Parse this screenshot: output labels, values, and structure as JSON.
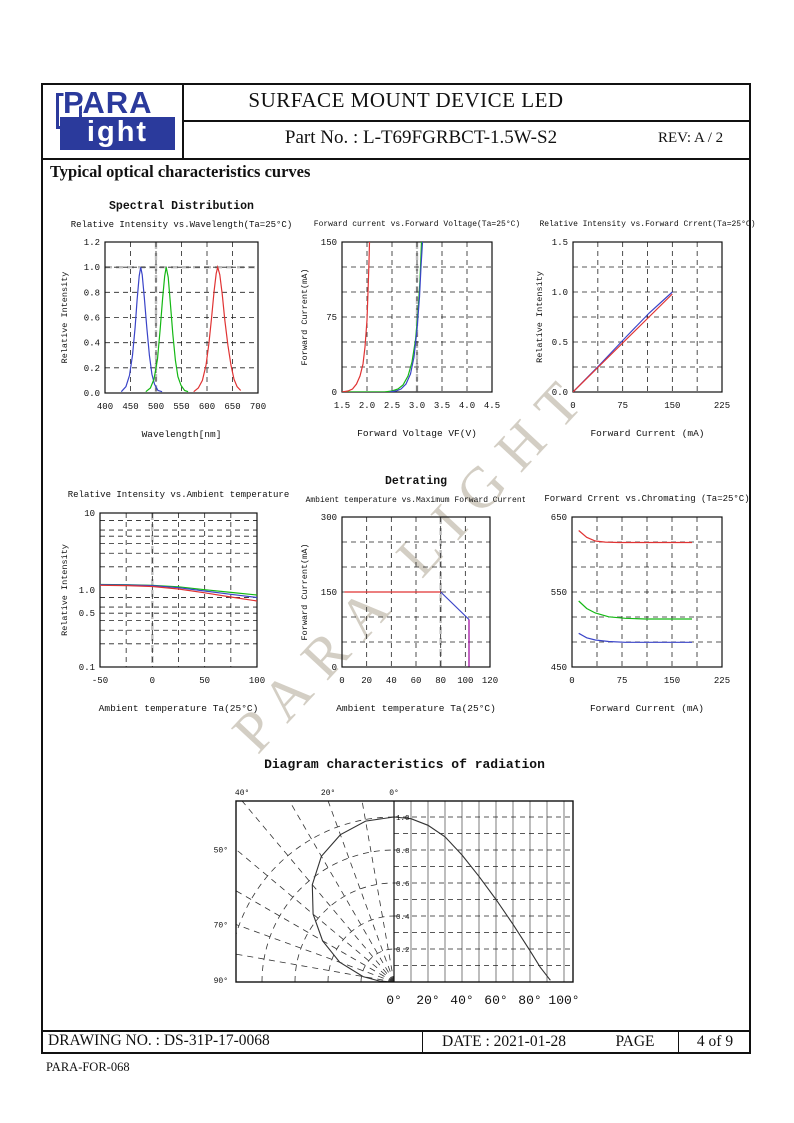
{
  "header": {
    "logo_top": "PARA",
    "logo_bottom": "ight",
    "title": "SURFACE MOUNT DEVICE LED",
    "part_no": "Part No. : L-T69FGRBCT-1.5W-S2",
    "rev": "REV: A / 2"
  },
  "section_heading": "Typical optical characteristics curves",
  "watermark": "PARA LIGHT",
  "footer": {
    "drawing_no": "DRAWING NO. : DS-31P-17-0068",
    "date": "DATE : 2021-01-28",
    "page_label": "PAGE",
    "page_value": "4 of 9",
    "form_no": "PARA-FOR-068"
  },
  "colors": {
    "brand_blue": "#2b3a9c",
    "series_red": "#e03333",
    "series_green": "#14b814",
    "series_blue": "#3a44c8",
    "series_magenta": "#990099"
  },
  "chart_data": [
    {
      "id": "spectral",
      "type": "line",
      "title": "Spectral Distribution",
      "subtitle": "Relative Intensity vs.Wavelength(Ta=25°C)",
      "xlabel": "Wavelength[nm]",
      "ylabel": "Relative Intensity",
      "xlim": [
        400,
        700
      ],
      "ylim": [
        0,
        1.2
      ],
      "xticks": [
        [
          400,
          "400"
        ],
        [
          450,
          "450"
        ],
        [
          500,
          "500"
        ],
        [
          550,
          "550"
        ],
        [
          600,
          "600"
        ],
        [
          650,
          "650"
        ],
        [
          700,
          "700"
        ]
      ],
      "yticks": [
        [
          0,
          "0.0"
        ],
        [
          0.2,
          "0.2"
        ],
        [
          0.4,
          "0.4"
        ],
        [
          0.6,
          "0.6"
        ],
        [
          0.8,
          "0.8"
        ],
        [
          1,
          "1.0"
        ],
        [
          1.2,
          "1.2"
        ]
      ],
      "xgrid": [
        450,
        500,
        550,
        600,
        650
      ],
      "ygrid": [
        0.2,
        0.4,
        0.6,
        0.8,
        1.0
      ],
      "xgrid_major": [
        500
      ],
      "ygrid_major": [
        1.0
      ],
      "series": [
        {
          "name": "blue",
          "color": "#3a44c8",
          "points": [
            [
              432,
              0.01
            ],
            [
              441,
              0.05
            ],
            [
              448,
              0.14
            ],
            [
              454,
              0.3
            ],
            [
              459,
              0.52
            ],
            [
              463,
              0.74
            ],
            [
              467,
              0.93
            ],
            [
              470,
              1.0
            ],
            [
              473,
              0.94
            ],
            [
              477,
              0.76
            ],
            [
              482,
              0.52
            ],
            [
              487,
              0.3
            ],
            [
              492,
              0.15
            ],
            [
              497,
              0.07
            ],
            [
              504,
              0.02
            ],
            [
              512,
              0.01
            ]
          ]
        },
        {
          "name": "green",
          "color": "#14b814",
          "points": [
            [
              480,
              0.01
            ],
            [
              489,
              0.04
            ],
            [
              496,
              0.11
            ],
            [
              503,
              0.27
            ],
            [
              508,
              0.5
            ],
            [
              513,
              0.75
            ],
            [
              517,
              0.93
            ],
            [
              520,
              1.0
            ],
            [
              524,
              0.92
            ],
            [
              528,
              0.72
            ],
            [
              533,
              0.47
            ],
            [
              538,
              0.26
            ],
            [
              543,
              0.13
            ],
            [
              549,
              0.06
            ],
            [
              556,
              0.02
            ],
            [
              563,
              0.01
            ]
          ]
        },
        {
          "name": "red",
          "color": "#e03333",
          "points": [
            [
              574,
              0.01
            ],
            [
              583,
              0.04
            ],
            [
              591,
              0.1
            ],
            [
              598,
              0.22
            ],
            [
              604,
              0.4
            ],
            [
              609,
              0.6
            ],
            [
              614,
              0.81
            ],
            [
              618,
              0.95
            ],
            [
              621,
              1.0
            ],
            [
              625,
              0.94
            ],
            [
              630,
              0.78
            ],
            [
              635,
              0.58
            ],
            [
              641,
              0.38
            ],
            [
              647,
              0.22
            ],
            [
              653,
              0.11
            ],
            [
              659,
              0.05
            ],
            [
              666,
              0.02
            ]
          ]
        }
      ]
    },
    {
      "id": "iv",
      "type": "line",
      "subtitle": "Forward current vs.Forward Voltage(Ta=25°C)",
      "xlabel": "Forward Voltage VF(V)",
      "ylabel": "Forward Current(mA)",
      "xlim": [
        1.5,
        4.5
      ],
      "ylim": [
        0,
        150
      ],
      "xticks": [
        [
          1.5,
          "1.5"
        ],
        [
          2,
          "2.0"
        ],
        [
          2.5,
          "2.5"
        ],
        [
          3,
          "3.0"
        ],
        [
          3.5,
          "3.5"
        ],
        [
          4,
          "4.0"
        ],
        [
          4.5,
          "4.5"
        ]
      ],
      "yticks": [
        [
          0,
          "0"
        ],
        [
          75,
          "75"
        ],
        [
          150,
          "150"
        ]
      ],
      "xgrid": [
        2,
        2.5,
        3,
        3.5,
        4
      ],
      "ygrid": [
        25,
        50,
        75,
        100,
        125
      ],
      "xgrid_major": [
        3
      ],
      "ygrid_major": [],
      "series": [
        {
          "name": "green",
          "color": "#14b814",
          "points": [
            [
              1.5,
              0
            ],
            [
              2.35,
              0
            ],
            [
              2.5,
              1
            ],
            [
              2.62,
              3
            ],
            [
              2.72,
              7
            ],
            [
              2.82,
              16
            ],
            [
              2.9,
              30
            ],
            [
              2.97,
              52
            ],
            [
              3.02,
              80
            ],
            [
              3.06,
              112
            ],
            [
              3.09,
              150
            ]
          ]
        },
        {
          "name": "blue",
          "color": "#3a44c8",
          "points": [
            [
              2.45,
              0
            ],
            [
              2.58,
              1
            ],
            [
              2.68,
              3
            ],
            [
              2.78,
              8
            ],
            [
              2.87,
              18
            ],
            [
              2.94,
              35
            ],
            [
              3.0,
              62
            ],
            [
              3.05,
              95
            ],
            [
              3.08,
              125
            ],
            [
              3.11,
              150
            ]
          ]
        },
        {
          "name": "red",
          "color": "#e03333",
          "points": [
            [
              1.5,
              0
            ],
            [
              1.62,
              1
            ],
            [
              1.71,
              3
            ],
            [
              1.79,
              8
            ],
            [
              1.86,
              16
            ],
            [
              1.92,
              28
            ],
            [
              1.96,
              45
            ],
            [
              2.0,
              72
            ],
            [
              2.02,
              100
            ],
            [
              2.04,
              130
            ],
            [
              2.05,
              150
            ]
          ]
        }
      ]
    },
    {
      "id": "li_if",
      "type": "line",
      "subtitle": "Relative Intensity vs.Forward Crrent(Ta=25°C)",
      "xlabel": "Forward Current (mA)",
      "ylabel": "Relative Intensity",
      "xlim": [
        0,
        225
      ],
      "ylim": [
        0,
        1.5
      ],
      "xticks": [
        [
          0,
          "0"
        ],
        [
          75,
          "75"
        ],
        [
          150,
          "150"
        ],
        [
          225,
          "225"
        ]
      ],
      "yticks": [
        [
          0,
          "0.0"
        ],
        [
          0.5,
          "0.5"
        ],
        [
          1,
          "1.0"
        ],
        [
          1.5,
          "1.5"
        ]
      ],
      "xgrid": [
        37.5,
        75,
        112.5,
        150,
        187.5
      ],
      "ygrid": [
        0.25,
        0.5,
        0.75,
        1,
        1.25
      ],
      "series": [
        {
          "name": "blue",
          "color": "#3a44c8",
          "points": [
            [
              0,
              0
            ],
            [
              40,
              0.27
            ],
            [
              80,
              0.55
            ],
            [
              115,
              0.79
            ],
            [
              150,
              1.0
            ]
          ]
        },
        {
          "name": "red",
          "color": "#e03333",
          "points": [
            [
              0,
              0
            ],
            [
              150,
              0.98
            ]
          ]
        }
      ]
    },
    {
      "id": "li_ta",
      "type": "line",
      "yscale": "log",
      "subtitle": "Relative Intensity vs.Ambient temperature",
      "xlabel": "Ambient temperature Ta(25°C)",
      "ylabel": "Relative Intensity",
      "xlim": [
        -50,
        100
      ],
      "ylim": [
        0.1,
        10
      ],
      "xticks": [
        [
          -50,
          "-50"
        ],
        [
          0,
          "0"
        ],
        [
          50,
          "50"
        ],
        [
          100,
          "100"
        ]
      ],
      "yticks": [
        [
          10,
          "10"
        ],
        [
          1,
          "1.0"
        ],
        [
          0.5,
          "0.5"
        ],
        [
          0.1,
          "0.1"
        ]
      ],
      "xgrid": [
        -25,
        0,
        25,
        50,
        75
      ],
      "ygrid": [
        8,
        6,
        5,
        4,
        3,
        2,
        0.8,
        0.6,
        0.5,
        0.4,
        0.3,
        0.2
      ],
      "xgrid_major": [
        0
      ],
      "ygrid_major": [],
      "series": [
        {
          "name": "green",
          "color": "#14b814",
          "points": [
            [
              -50,
              1.18
            ],
            [
              -25,
              1.17
            ],
            [
              0,
              1.15
            ],
            [
              25,
              1.1
            ],
            [
              50,
              1.01
            ],
            [
              75,
              0.93
            ],
            [
              100,
              0.86
            ]
          ]
        },
        {
          "name": "blue",
          "color": "#3a44c8",
          "points": [
            [
              -50,
              1.17
            ],
            [
              -25,
              1.16
            ],
            [
              0,
              1.14
            ],
            [
              25,
              1.07
            ],
            [
              50,
              0.97
            ],
            [
              75,
              0.88
            ],
            [
              100,
              0.8
            ]
          ]
        },
        {
          "name": "red",
          "color": "#e03333",
          "points": [
            [
              -50,
              1.15
            ],
            [
              -25,
              1.14
            ],
            [
              0,
              1.11
            ],
            [
              25,
              1.03
            ],
            [
              50,
              0.92
            ],
            [
              75,
              0.81
            ],
            [
              100,
              0.72
            ]
          ]
        }
      ]
    },
    {
      "id": "derating",
      "type": "line",
      "title": "Detrating",
      "subtitle": "Ambient temperature vs.Maximum Forward Current",
      "xlabel": "Ambient temperature Ta(25°C)",
      "ylabel": "Forward Current(mA)",
      "xlim": [
        0,
        120
      ],
      "ylim": [
        0,
        300
      ],
      "xticks": [
        [
          0,
          "0"
        ],
        [
          20,
          "20"
        ],
        [
          40,
          "40"
        ],
        [
          60,
          "60"
        ],
        [
          80,
          "80"
        ],
        [
          100,
          "100"
        ],
        [
          120,
          "120"
        ]
      ],
      "yticks": [
        [
          0,
          "0"
        ],
        [
          150,
          "150"
        ],
        [
          300,
          "300"
        ]
      ],
      "xgrid": [
        20,
        40,
        60,
        80,
        100
      ],
      "ygrid": [
        50,
        100,
        150,
        200,
        250
      ],
      "xgrid_major": [
        80
      ],
      "ygrid_major": [],
      "series": [
        {
          "name": "red",
          "color": "#e03333",
          "points": [
            [
              2,
              150
            ],
            [
              80,
              150
            ]
          ]
        },
        {
          "name": "blue",
          "color": "#3a44c8",
          "points": [
            [
              80,
              150
            ],
            [
              103,
              95
            ]
          ]
        },
        {
          "name": "magenta",
          "color": "#990099",
          "points": [
            [
              103,
              95
            ],
            [
              103,
              1
            ]
          ]
        }
      ]
    },
    {
      "id": "chromaticity",
      "type": "line",
      "subtitle": "Forward Crrent vs.Chromating (Ta=25°C)",
      "xlabel": "Forward Current (mA)",
      "ylabel": "",
      "xlim": [
        0,
        225
      ],
      "ylim": [
        450,
        650
      ],
      "xticks": [
        [
          0,
          "0"
        ],
        [
          75,
          "75"
        ],
        [
          150,
          "150"
        ],
        [
          225,
          "225"
        ]
      ],
      "yticks": [
        [
          650,
          "650"
        ],
        [
          550,
          "550"
        ],
        [
          450,
          "450"
        ]
      ],
      "xgrid": [
        37.5,
        75,
        112.5,
        150,
        187.5
      ],
      "ygrid": [
        483.3,
        516.7,
        550,
        583.3,
        616.7
      ],
      "series": [
        {
          "name": "red",
          "color": "#e03333",
          "points": [
            [
              10,
              632
            ],
            [
              22,
              623
            ],
            [
              35,
              618
            ],
            [
              50,
              616.5
            ],
            [
              70,
              616
            ],
            [
              180,
              616
            ]
          ]
        },
        {
          "name": "green",
          "color": "#14b814",
          "points": [
            [
              10,
              538
            ],
            [
              22,
              528
            ],
            [
              35,
              522
            ],
            [
              55,
              517
            ],
            [
              80,
              515
            ],
            [
              110,
              514
            ],
            [
              180,
              514
            ]
          ]
        },
        {
          "name": "blue",
          "color": "#3a44c8",
          "points": [
            [
              10,
              495
            ],
            [
              22,
              489
            ],
            [
              35,
              486
            ],
            [
              55,
              484
            ],
            [
              80,
              483
            ],
            [
              180,
              483
            ]
          ]
        }
      ]
    },
    {
      "id": "radiation",
      "type": "radiation",
      "title": "Diagram characteristics of radiation",
      "polar_top_labels": [
        [
          40,
          "40°"
        ],
        [
          20,
          "20°"
        ],
        [
          0,
          "0°"
        ]
      ],
      "polar_left_labels": [
        [
          50,
          "50°"
        ],
        [
          70,
          "70°"
        ],
        [
          90,
          "90°"
        ]
      ],
      "xticks": [
        [
          0,
          "0°"
        ],
        [
          20,
          "20°"
        ],
        [
          40,
          "40°"
        ],
        [
          60,
          "60°"
        ],
        [
          80,
          "80°"
        ],
        [
          100,
          "100°"
        ]
      ],
      "ylabels": [
        [
          1,
          "1.0"
        ],
        [
          0.8,
          "0.8"
        ],
        [
          0.6,
          "0.6"
        ],
        [
          0.4,
          "0.4"
        ],
        [
          0.2,
          "0.2"
        ]
      ],
      "rgrid": [
        0.2,
        0.4,
        0.6,
        0.8,
        1.0
      ],
      "agrid_step": 10,
      "curve": [
        [
          0,
          1.0
        ],
        [
          10,
          0.99
        ],
        [
          20,
          0.95
        ],
        [
          30,
          0.88
        ],
        [
          40,
          0.77
        ],
        [
          50,
          0.64
        ],
        [
          60,
          0.5
        ],
        [
          70,
          0.35
        ],
        [
          80,
          0.19
        ],
        [
          86,
          0.09
        ],
        [
          92,
          0.01
        ]
      ],
      "color": "#333333"
    }
  ]
}
